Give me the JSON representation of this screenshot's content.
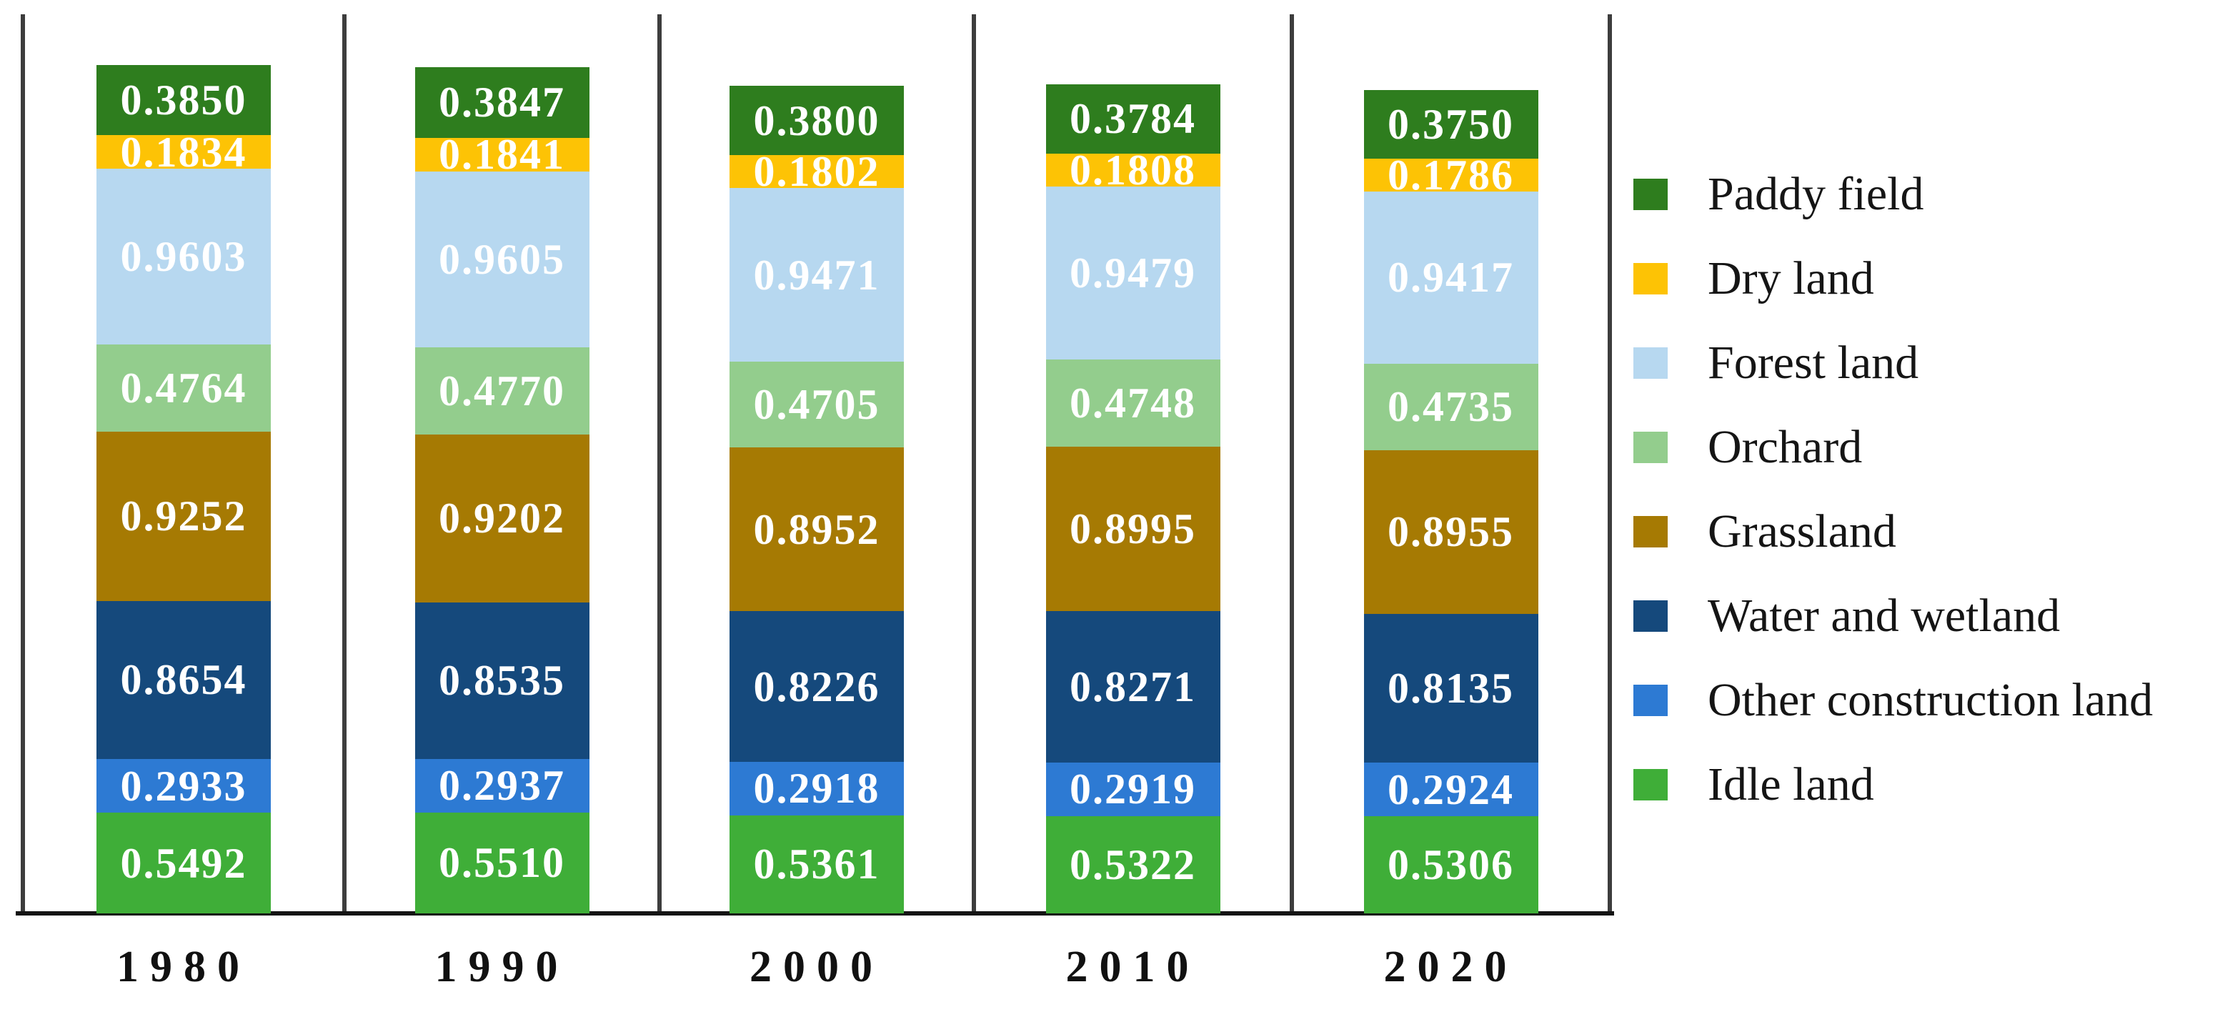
{
  "chart_data": {
    "type": "bar",
    "stacked": true,
    "orientation": "vertical",
    "grid": false,
    "legend_position": "right",
    "value_labels": "inside, white bold, 4 decimals",
    "categories": [
      "1980",
      "1990",
      "2000",
      "2010",
      "2020"
    ],
    "series": [
      {
        "name": "Paddy field",
        "color": "#2E7D1E",
        "values": [
          "0.3850",
          "0.3847",
          "0.3800",
          "0.3784",
          "0.3750"
        ]
      },
      {
        "name": "Dry land",
        "color": "#FDC305",
        "values": [
          "0.1834",
          "0.1841",
          "0.1802",
          "0.1808",
          "0.1786"
        ]
      },
      {
        "name": "Forest land",
        "color": "#B7D8F0",
        "values": [
          "0.9603",
          "0.9605",
          "0.9471",
          "0.9479",
          "0.9417"
        ]
      },
      {
        "name": "Orchard",
        "color": "#93CD8D",
        "values": [
          "0.4764",
          "0.4770",
          "0.4705",
          "0.4748",
          "0.4735"
        ]
      },
      {
        "name": "Grassland",
        "color": "#A67A03",
        "values": [
          "0.9252",
          "0.9202",
          "0.8952",
          "0.8995",
          "0.8955"
        ]
      },
      {
        "name": "Water and wetland",
        "color": "#15497C",
        "values": [
          "0.8654",
          "0.8535",
          "0.8226",
          "0.8271",
          "0.8135"
        ]
      },
      {
        "name": "Other construction land",
        "color": "#2D7AD3",
        "values": [
          "0.2933",
          "0.2937",
          "0.2918",
          "0.2919",
          "0.2924"
        ]
      },
      {
        "name": "Idle land",
        "color": "#3FAE38",
        "values": [
          "0.5492",
          "0.5510",
          "0.5361",
          "0.5322",
          "0.5306"
        ]
      }
    ],
    "x_axis": {
      "labels": [
        "1980",
        "1990",
        "2000",
        "2010",
        "2020"
      ]
    },
    "y_axis": {
      "visible": false
    }
  },
  "legend": {
    "items": [
      {
        "label": "Paddy field",
        "color": "#2E7D1E"
      },
      {
        "label": "Dry land",
        "color": "#FDC305"
      },
      {
        "label": "Forest land",
        "color": "#B7D8F0"
      },
      {
        "label": "Orchard",
        "color": "#93CD8D"
      },
      {
        "label": "Grassland",
        "color": "#A67A03"
      },
      {
        "label": "Water and wetland",
        "color": "#15497C"
      },
      {
        "label": "Other construction land",
        "color": "#2D7AD3"
      },
      {
        "label": "Idle land",
        "color": "#3FAE38"
      }
    ]
  },
  "colors": {
    "axis_line": "#141414",
    "panel_line": "#3D3D3D",
    "value_text": "#FFFFFF",
    "label_text": "#111111",
    "background": "#FFFFFF"
  }
}
